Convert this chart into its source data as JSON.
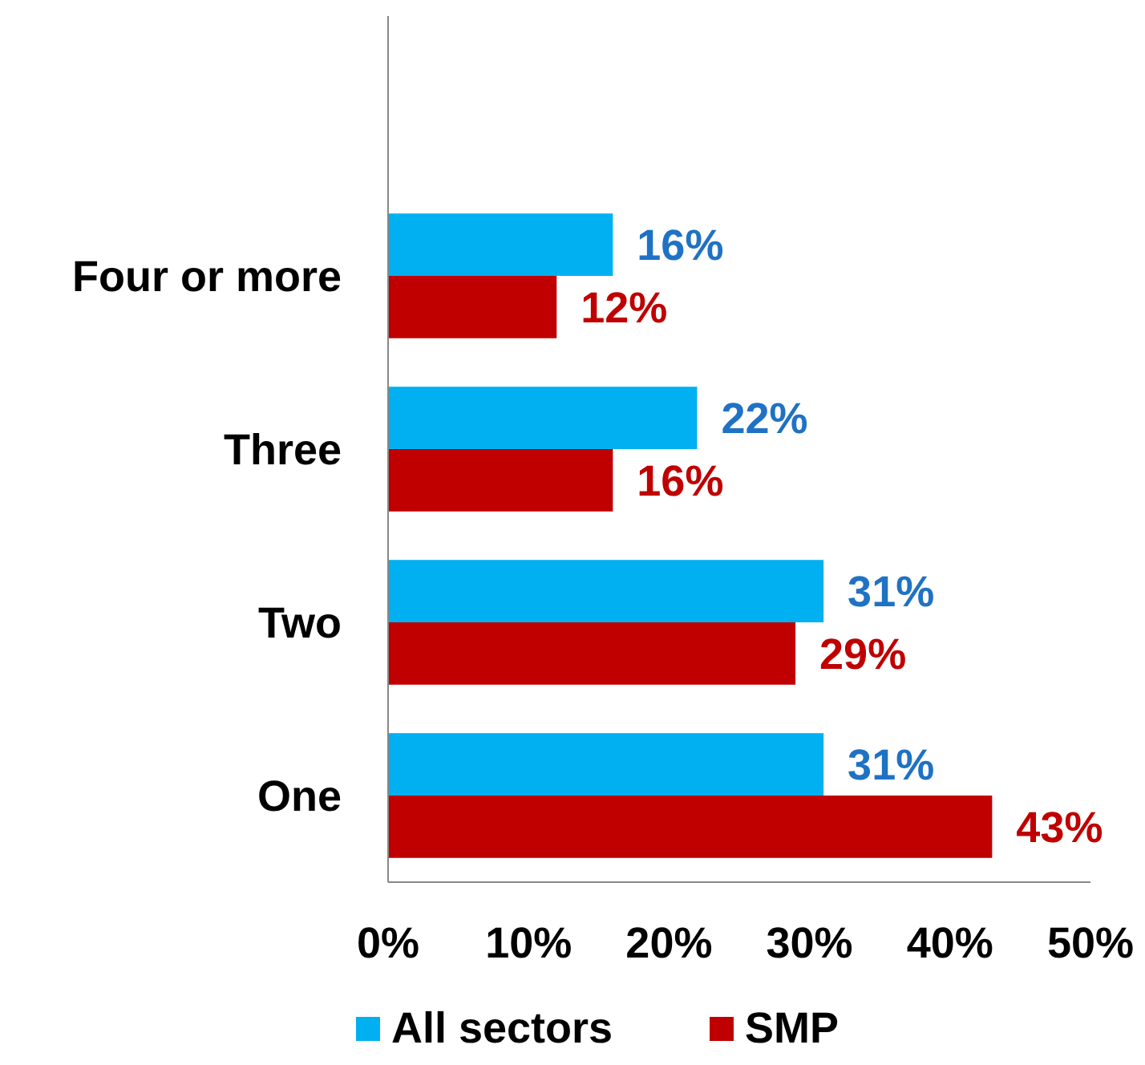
{
  "chart_data": {
    "type": "bar",
    "orientation": "horizontal",
    "categories": [
      "Four or more",
      "Three",
      "Two",
      "One"
    ],
    "series": [
      {
        "name": "All sectors",
        "color": "#00b0f0",
        "values": [
          16,
          22,
          31,
          31
        ]
      },
      {
        "name": "SMP",
        "color": "#c00000",
        "values": [
          12,
          16,
          29,
          43
        ]
      }
    ],
    "xlim": [
      0,
      50
    ],
    "xticks": [
      {
        "value": 0,
        "label": "0%"
      },
      {
        "value": 10,
        "label": "10%"
      },
      {
        "value": 20,
        "label": "20%"
      },
      {
        "value": 30,
        "label": "30%"
      },
      {
        "value": 40,
        "label": "40%"
      },
      {
        "value": 50,
        "label": "50%"
      }
    ],
    "value_labels": [
      [
        "16%",
        "22%",
        "31%",
        "31%"
      ],
      [
        "12%",
        "16%",
        "29%",
        "43%"
      ]
    ],
    "grid": false,
    "legend": "bottom"
  }
}
